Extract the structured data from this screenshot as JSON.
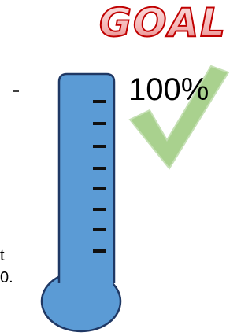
{
  "title": "GOAL",
  "goal_label": "100%",
  "side_text": [
    "t",
    "0."
  ]
}
